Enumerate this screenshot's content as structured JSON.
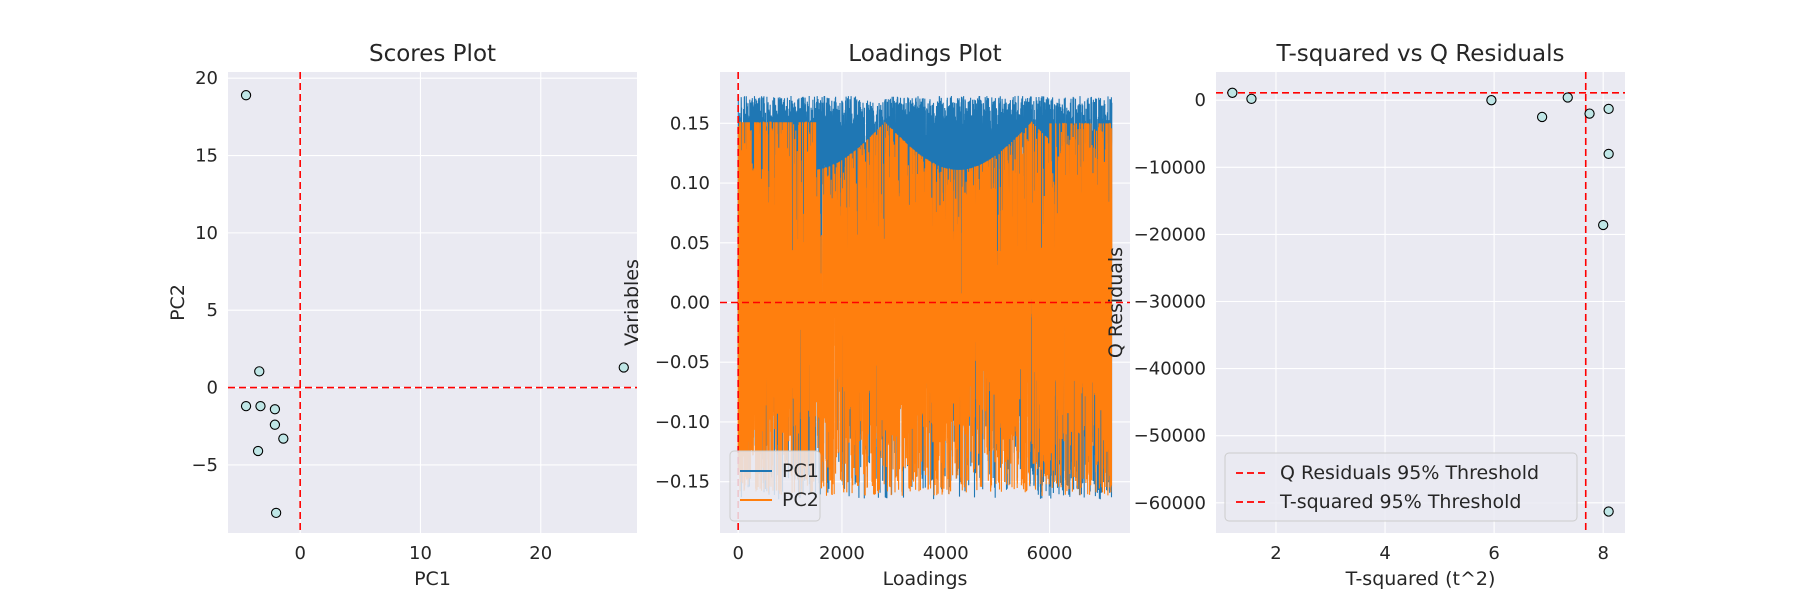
{
  "chart_data": [
    {
      "type": "scatter",
      "title": "Scores Plot",
      "xlabel": "PC1",
      "ylabel": "PC2",
      "xlim": [
        -6.0,
        28.0
      ],
      "ylim": [
        -9.4,
        20.4
      ],
      "xticks": [
        0,
        10,
        20
      ],
      "yticks": [
        -5,
        0,
        5,
        10,
        15,
        20
      ],
      "grid": true,
      "points": [
        {
          "x": -4.5,
          "y": 18.9
        },
        {
          "x": -3.4,
          "y": 1.05
        },
        {
          "x": -4.5,
          "y": -1.2
        },
        {
          "x": -3.3,
          "y": -1.2
        },
        {
          "x": -2.1,
          "y": -1.4
        },
        {
          "x": -2.1,
          "y": -2.4
        },
        {
          "x": -1.4,
          "y": -3.3
        },
        {
          "x": -3.5,
          "y": -4.1
        },
        {
          "x": -2.0,
          "y": -8.1
        },
        {
          "x": 26.9,
          "y": 1.3
        }
      ],
      "reference_lines": {
        "vertical": 0,
        "horizontal": 0,
        "color": "#ff0000"
      }
    },
    {
      "type": "line",
      "title": "Loadings Plot",
      "xlabel": "Loadings",
      "ylabel": "Variables",
      "xlim": [
        -350,
        7550
      ],
      "ylim": [
        -0.193,
        0.193
      ],
      "xticks": [
        0,
        2000,
        4000,
        6000
      ],
      "yticks": [
        -0.15,
        -0.1,
        -0.05,
        0.0,
        0.05,
        0.1,
        0.15
      ],
      "ytick_labels": [
        "−0.15",
        "−0.10",
        "−0.05",
        "0.00",
        "0.05",
        "0.10",
        "0.15"
      ],
      "grid": true,
      "legend_position": "lower-left",
      "n_variables": 7200,
      "series": [
        {
          "name": "PC1",
          "color": "#1f77b4",
          "range": [
            -0.165,
            0.173
          ]
        },
        {
          "name": "PC2",
          "color": "#ff7f0e",
          "range": [
            -0.172,
            0.171
          ]
        }
      ],
      "reference_lines": {
        "vertical": 0,
        "horizontal": 0,
        "color": "#ff0000"
      }
    },
    {
      "type": "scatter",
      "title": "T-squared vs Q Residuals",
      "xlabel": "T-squared (t^2)",
      "ylabel": "Q Residuals",
      "xlim": [
        0.9,
        8.4
      ],
      "ylim": [
        -64500,
        4200
      ],
      "xticks": [
        2,
        4,
        6,
        8
      ],
      "yticks": [
        0,
        -10000,
        -20000,
        -30000,
        -40000,
        -50000,
        -60000
      ],
      "ytick_labels": [
        "0",
        "−10000",
        "−20000",
        "−30000",
        "−40000",
        "−50000",
        "−60000"
      ],
      "grid": true,
      "legend_position": "lower-left",
      "points": [
        {
          "x": 1.2,
          "y": 1100
        },
        {
          "x": 1.55,
          "y": 200
        },
        {
          "x": 5.95,
          "y": 0
        },
        {
          "x": 6.88,
          "y": -2500
        },
        {
          "x": 7.35,
          "y": 400
        },
        {
          "x": 7.75,
          "y": -2000
        },
        {
          "x": 8.1,
          "y": -1300
        },
        {
          "x": 8.1,
          "y": -8000
        },
        {
          "x": 8.0,
          "y": -18600
        },
        {
          "x": 8.1,
          "y": -61300
        }
      ],
      "thresholds": [
        {
          "name": "Q Residuals 95% Threshold",
          "axis": "y",
          "value": 1100,
          "color": "#ff0000"
        },
        {
          "name": "T-squared 95% Threshold",
          "axis": "x",
          "value": 7.68,
          "color": "#ff0000"
        }
      ]
    }
  ]
}
